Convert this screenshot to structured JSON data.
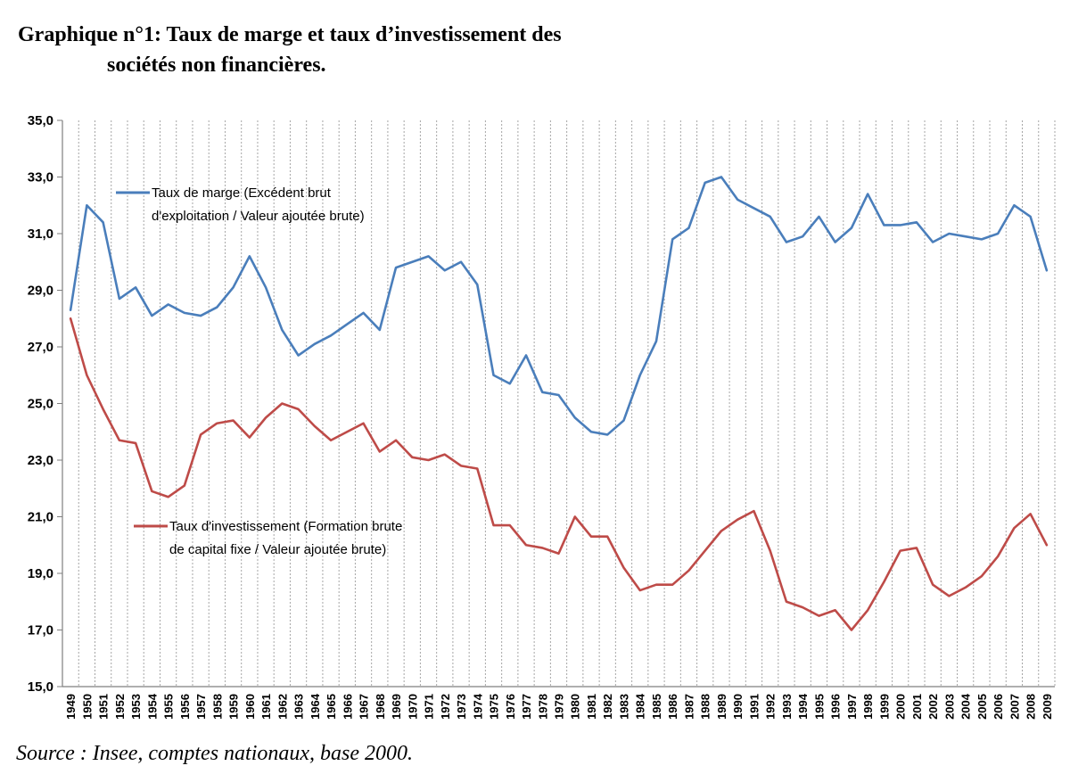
{
  "title_line1": "Graphique n°1: Taux de marge et taux d’investissement des",
  "title_line2": "sociétés non financières.",
  "source": "Source : Insee, comptes nationaux, base 2000.",
  "chart_data": {
    "type": "line",
    "title": "Graphique n°1: Taux de marge et taux d’investissement des sociétés non financières.",
    "xlabel": "",
    "ylabel": "",
    "ylim": [
      15,
      35
    ],
    "yticks": [
      15,
      17,
      19,
      21,
      23,
      25,
      27,
      29,
      31,
      33,
      35
    ],
    "ytick_labels": [
      "15,0",
      "17,0",
      "19,0",
      "21,0",
      "23,0",
      "25,0",
      "27,0",
      "29,0",
      "31,0",
      "33,0",
      "35,0"
    ],
    "grid": "vertical",
    "x": [
      "1949",
      "1950",
      "1951",
      "1952",
      "1953",
      "1954",
      "1955",
      "1956",
      "1957",
      "1958",
      "1959",
      "1960",
      "1961",
      "1962",
      "1963",
      "1964",
      "1965",
      "1966",
      "1967",
      "1968",
      "1969",
      "1970",
      "1971",
      "1972",
      "1973",
      "1974",
      "1975",
      "1976",
      "1977",
      "1978",
      "1979",
      "1980",
      "1981",
      "1982",
      "1983",
      "1984",
      "1985",
      "1986",
      "1987",
      "1988",
      "1989",
      "1990",
      "1991",
      "1992",
      "1993",
      "1994",
      "1995",
      "1996",
      "1997",
      "1998",
      "1999",
      "2000",
      "2001",
      "2002",
      "2003",
      "2004",
      "2005",
      "2006",
      "2007",
      "2008",
      "2009"
    ],
    "series": [
      {
        "name": "Taux de marge (Excédent brut d'exploitation / Valeur ajoutée brute)",
        "legend_lines": [
          "Taux de marge (Excédent brut",
          "d'exploitation / Valeur ajoutée brute)"
        ],
        "color": "#4a7ebb",
        "values": [
          28.3,
          32.0,
          31.4,
          28.7,
          29.1,
          28.1,
          28.5,
          28.2,
          28.1,
          28.4,
          29.1,
          30.2,
          29.1,
          27.6,
          26.7,
          27.1,
          27.4,
          27.8,
          28.2,
          27.6,
          29.8,
          30.0,
          30.2,
          29.7,
          30.0,
          29.2,
          26.0,
          25.7,
          26.7,
          25.4,
          25.3,
          24.5,
          24.0,
          23.9,
          24.4,
          26.0,
          27.2,
          30.8,
          31.2,
          32.8,
          33.0,
          32.2,
          31.9,
          31.6,
          30.7,
          30.9,
          31.6,
          30.7,
          31.2,
          32.4,
          31.3,
          31.3,
          31.4,
          30.7,
          31.0,
          30.9,
          30.8,
          31.0,
          32.0,
          31.6,
          29.7
        ]
      },
      {
        "name": "Taux d'investissement (Formation brute de capital fixe / Valeur ajoutée brute)",
        "legend_lines": [
          "Taux d'investissement (Formation brute",
          "de capital fixe / Valeur ajoutée brute)"
        ],
        "color": "#be4b48",
        "values": [
          28.0,
          26.0,
          24.8,
          23.7,
          23.6,
          21.9,
          21.7,
          22.1,
          23.9,
          24.3,
          24.4,
          23.8,
          24.5,
          25.0,
          24.8,
          24.2,
          23.7,
          24.0,
          24.3,
          23.3,
          23.7,
          23.1,
          23.0,
          23.2,
          22.8,
          22.7,
          20.7,
          20.7,
          20.0,
          19.9,
          19.7,
          21.0,
          20.3,
          20.3,
          19.2,
          18.4,
          18.6,
          18.6,
          19.1,
          19.8,
          20.5,
          20.9,
          21.2,
          19.8,
          18.0,
          17.8,
          17.5,
          17.7,
          17.0,
          17.7,
          18.7,
          19.8,
          19.9,
          18.6,
          18.2,
          18.5,
          18.9,
          19.6,
          20.6,
          21.1,
          20.0
        ]
      }
    ]
  }
}
